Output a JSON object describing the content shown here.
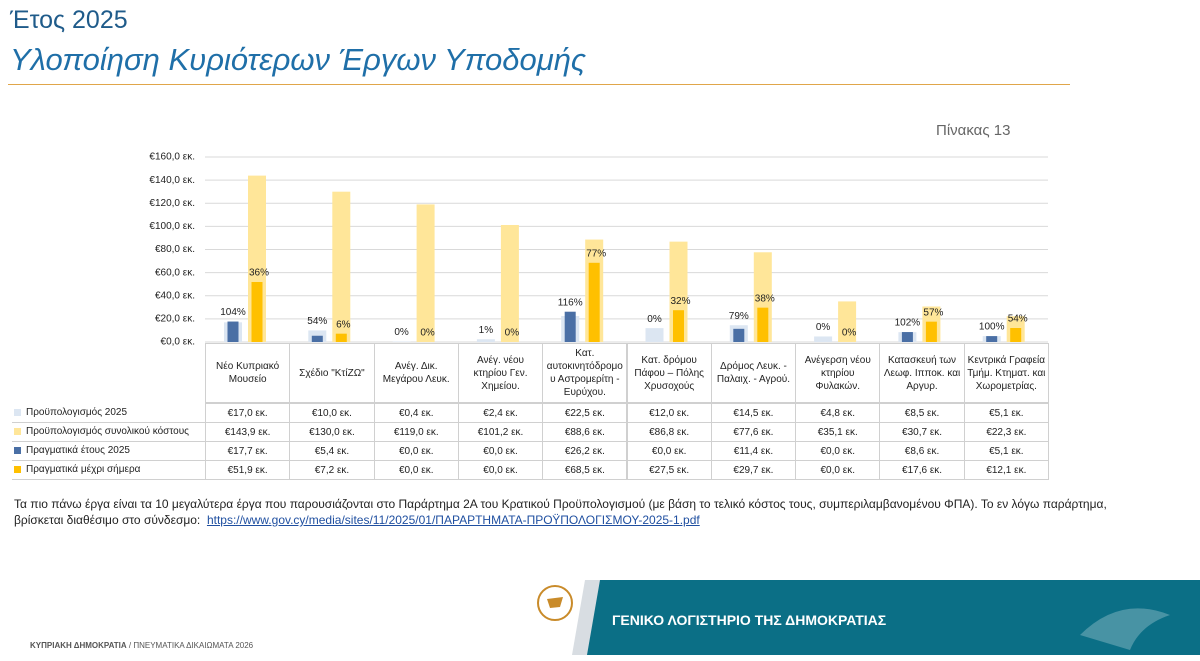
{
  "header": {
    "year": "Έτος 2025",
    "title": "Υλοποίηση Κυριότερων Έργων Υποδομής",
    "table_no": "Πίνακας 13"
  },
  "chart_data": {
    "type": "bar",
    "categories": [
      "Νέο Κυπριακό Μουσείο",
      "Σχέδιο \"ΚτίΖΩ\"",
      "Ανέγ. Δικ. Μεγάρου Λευκ.",
      "Ανέγ. νέου κτηρίου Γεν. Χημείου.",
      "Κατ. αυτοκινητόδρομου Αστρομερίτη - Ευρύχου.",
      "Κατ. δρόμου Πάφου – Πόλης Χρυσοχούς",
      "Δρόμος Λευκ. - Παλαιχ. - Αγρού.",
      "Ανέγερση νέου κτηρίου Φυλακών.",
      "Κατασκευή των Λεωφ. Ιπποκ. και Αργυρ.",
      "Κεντρικά Γραφεία Τμήμ. Κτηματ. και Χωρομετρίας."
    ],
    "series": [
      {
        "name": "Προϋπολογισμός 2025",
        "color": "#dce6f2",
        "values": [
          17.0,
          10.0,
          0.4,
          2.4,
          22.5,
          12.0,
          14.5,
          4.8,
          8.5,
          5.1
        ],
        "value_labels": [
          "€17,0 εκ.",
          "€10,0 εκ.",
          "€0,4 εκ.",
          "€2,4 εκ.",
          "€22,5 εκ.",
          "€12,0 εκ.",
          "€14,5 εκ.",
          "€4,8 εκ.",
          "€8,5 εκ.",
          "€5,1 εκ."
        ]
      },
      {
        "name": "Προϋπολογισμός συνολικού κόστους",
        "color": "#ffe699",
        "values": [
          143.9,
          130.0,
          119.0,
          101.2,
          88.6,
          86.8,
          77.6,
          35.1,
          30.7,
          22.3
        ],
        "value_labels": [
          "€143,9 εκ.",
          "€130,0 εκ.",
          "€119,0 εκ.",
          "€101,2 εκ.",
          "€88,6 εκ.",
          "€86,8 εκ.",
          "€77,6 εκ.",
          "€35,1 εκ.",
          "€30,7 εκ.",
          "€22,3 εκ."
        ]
      },
      {
        "name": "Πραγματικά έτους 2025",
        "color": "#4a6fa5",
        "values": [
          17.7,
          5.4,
          0,
          0,
          26.2,
          0,
          11.4,
          0,
          8.6,
          5.1
        ],
        "value_labels": [
          "€17,7 εκ.",
          "€5,4 εκ.",
          "€0,0 εκ.",
          "€0,0 εκ.",
          "€26,2 εκ.",
          "€0,0 εκ.",
          "€11,4 εκ.",
          "€0,0 εκ.",
          "€8,6 εκ.",
          "€5,1 εκ."
        ]
      },
      {
        "name": "Πραγματικά μέχρι σήμερα",
        "color": "#ffc000",
        "values": [
          51.9,
          7.2,
          0,
          0,
          68.5,
          27.5,
          29.7,
          0,
          17.6,
          12.1
        ],
        "value_labels": [
          "€51,9 εκ.",
          "€7,2 εκ.",
          "€0,0 εκ.",
          "€0,0 εκ.",
          "€68,5 εκ.",
          "€27,5 εκ.",
          "€29,7 εκ.",
          "€0,0 εκ.",
          "€17,6 εκ.",
          "€12,1 εκ."
        ]
      }
    ],
    "ratio_labels_2025": [
      "104%",
      "54%",
      "0%",
      "1%",
      "116%",
      "0%",
      "79%",
      "0%",
      "102%",
      "100%"
    ],
    "ratio_labels_total": [
      "36%",
      "6%",
      "0%",
      "0%",
      "77%",
      "32%",
      "38%",
      "0%",
      "57%",
      "54%"
    ],
    "ylim": [
      0,
      160
    ],
    "yticks": [
      {
        "value": 0,
        "label": "€0,0 εκ."
      },
      {
        "value": 20,
        "label": "€20,0 εκ."
      },
      {
        "value": 40,
        "label": "€40,0 εκ."
      },
      {
        "value": 60,
        "label": "€60,0 εκ."
      },
      {
        "value": 80,
        "label": "€80,0 εκ."
      },
      {
        "value": 100,
        "label": "€100,0 εκ."
      },
      {
        "value": 120,
        "label": "€120,0 εκ."
      },
      {
        "value": 140,
        "label": "€140,0 εκ."
      },
      {
        "value": 160,
        "label": "€160,0 εκ."
      }
    ],
    "grid": true
  },
  "footer": {
    "note": "Τα πιο πάνω έργα είναι τα 10 μεγαλύτερα έργα που παρουσιάζονται στο Παράρτημα 2Α του Κρατικού Προϋπολογισμού (με βάση το τελικό κόστος τους, συμπεριλαμβανομένου ΦΠΑ). Το εν λόγω παράρτημα, βρίσκεται διαθέσιμο στο σύνδεσμο:",
    "link": "https://www.gov.cy/media/sites/11/2025/01/ΠΑΡΑΡΤΗΜΑΤΑ-ΠΡΟΫΠΟΛΟΓΙΣΜΟΥ-2025-1.pdf",
    "banner": "ΓΕΝΙΚΟ ΛΟΓΙΣΤΗΡΙΟ ΤΗΣ ΔΗΜΟΚΡΑΤΙΑΣ",
    "org": "ΚΥΠΡΙΑΚΗ ΔΗΜΟΚΡΑΤΙΑ",
    "rights": "/ ΠΝΕΥΜΑΤΙΚΑ ΔΙΚΑΙΩΜΑΤΑ 2026"
  }
}
